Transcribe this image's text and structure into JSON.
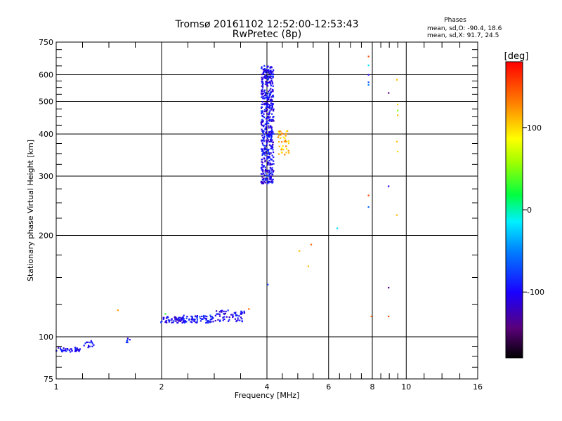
{
  "chart_data": {
    "type": "scatter",
    "title": "Tromsø 20161102 12:52:00-12:53:43",
    "subtitle": "RwPretec (8p)",
    "xlabel": "Frequency [MHz]",
    "ylabel": "Stationary phase Virtual Height [km]",
    "xscale": "log",
    "yscale": "log",
    "xlim": [
      1,
      16
    ],
    "ylim": [
      75,
      750
    ],
    "x_ticks": [
      1,
      2,
      4,
      6,
      8,
      10,
      16
    ],
    "y_ticks": [
      75,
      100,
      200,
      300,
      400,
      500,
      600,
      750
    ],
    "grid": true,
    "legend": {
      "title": "Phases",
      "lines": [
        "mean, sd,O: -90.4, 18.6",
        "mean, sd,X:  91.7, 24.5"
      ],
      "position": "top-right"
    },
    "colorbar": {
      "label": "[deg]",
      "range": [
        -180,
        180
      ],
      "ticks": [
        100,
        0,
        -100
      ],
      "position": "right"
    },
    "series": [
      {
        "clusters": [
          {
            "xmin": 1.0,
            "xmax": 1.17,
            "ymin": 90,
            "ymax": 93,
            "n": 40,
            "phase": -100
          },
          {
            "xmin": 1.2,
            "xmax": 1.3,
            "ymin": 93,
            "ymax": 98,
            "n": 14,
            "phase": -100
          },
          {
            "xmin": 1.58,
            "xmax": 1.64,
            "ymin": 96,
            "ymax": 99,
            "n": 6,
            "phase": -100
          },
          {
            "xmin": 1.99,
            "xmax": 2.3,
            "ymin": 110,
            "ymax": 115,
            "n": 50,
            "phase": -105
          },
          {
            "xmin": 2.3,
            "xmax": 2.8,
            "ymin": 110,
            "ymax": 116,
            "n": 70,
            "phase": -90
          },
          {
            "xmin": 2.8,
            "xmax": 3.45,
            "ymin": 111,
            "ymax": 120,
            "n": 60,
            "phase": -105
          },
          {
            "xmin": 3.85,
            "xmax": 4.18,
            "ymin": 285,
            "ymax": 640,
            "n": 520,
            "phase": -100
          },
          {
            "xmin": 4.3,
            "xmax": 4.62,
            "ymin": 345,
            "ymax": 410,
            "n": 40,
            "phase": 110
          }
        ]
      },
      {
        "points": [
          {
            "x": 1.5,
            "y": 120,
            "phase": 120
          },
          {
            "x": 2.05,
            "y": 117,
            "phase": 30
          },
          {
            "x": 3.55,
            "y": 121,
            "phase": 140
          },
          {
            "x": 4.02,
            "y": 143,
            "phase": -80
          },
          {
            "x": 4.95,
            "y": 180,
            "phase": 110
          },
          {
            "x": 5.25,
            "y": 162,
            "phase": 110
          },
          {
            "x": 5.35,
            "y": 188,
            "phase": 140
          },
          {
            "x": 6.35,
            "y": 210,
            "phase": -20
          },
          {
            "x": 7.8,
            "y": 680,
            "phase": 150
          },
          {
            "x": 7.8,
            "y": 640,
            "phase": -20
          },
          {
            "x": 7.8,
            "y": 600,
            "phase": -100
          },
          {
            "x": 7.8,
            "y": 570,
            "phase": -70
          },
          {
            "x": 7.8,
            "y": 560,
            "phase": -50
          },
          {
            "x": 7.8,
            "y": 263,
            "phase": 150
          },
          {
            "x": 7.8,
            "y": 243,
            "phase": -60
          },
          {
            "x": 7.95,
            "y": 115,
            "phase": 140
          },
          {
            "x": 8.9,
            "y": 530,
            "phase": -140
          },
          {
            "x": 8.9,
            "y": 280,
            "phase": -100
          },
          {
            "x": 8.9,
            "y": 140,
            "phase": -140
          },
          {
            "x": 8.9,
            "y": 115,
            "phase": 150
          },
          {
            "x": 9.4,
            "y": 580,
            "phase": 110
          },
          {
            "x": 9.45,
            "y": 490,
            "phase": 100
          },
          {
            "x": 9.45,
            "y": 470,
            "phase": 50
          },
          {
            "x": 9.45,
            "y": 455,
            "phase": 110
          },
          {
            "x": 9.4,
            "y": 380,
            "phase": 110
          },
          {
            "x": 9.45,
            "y": 355,
            "phase": 100
          },
          {
            "x": 9.4,
            "y": 230,
            "phase": 110
          }
        ]
      }
    ]
  }
}
